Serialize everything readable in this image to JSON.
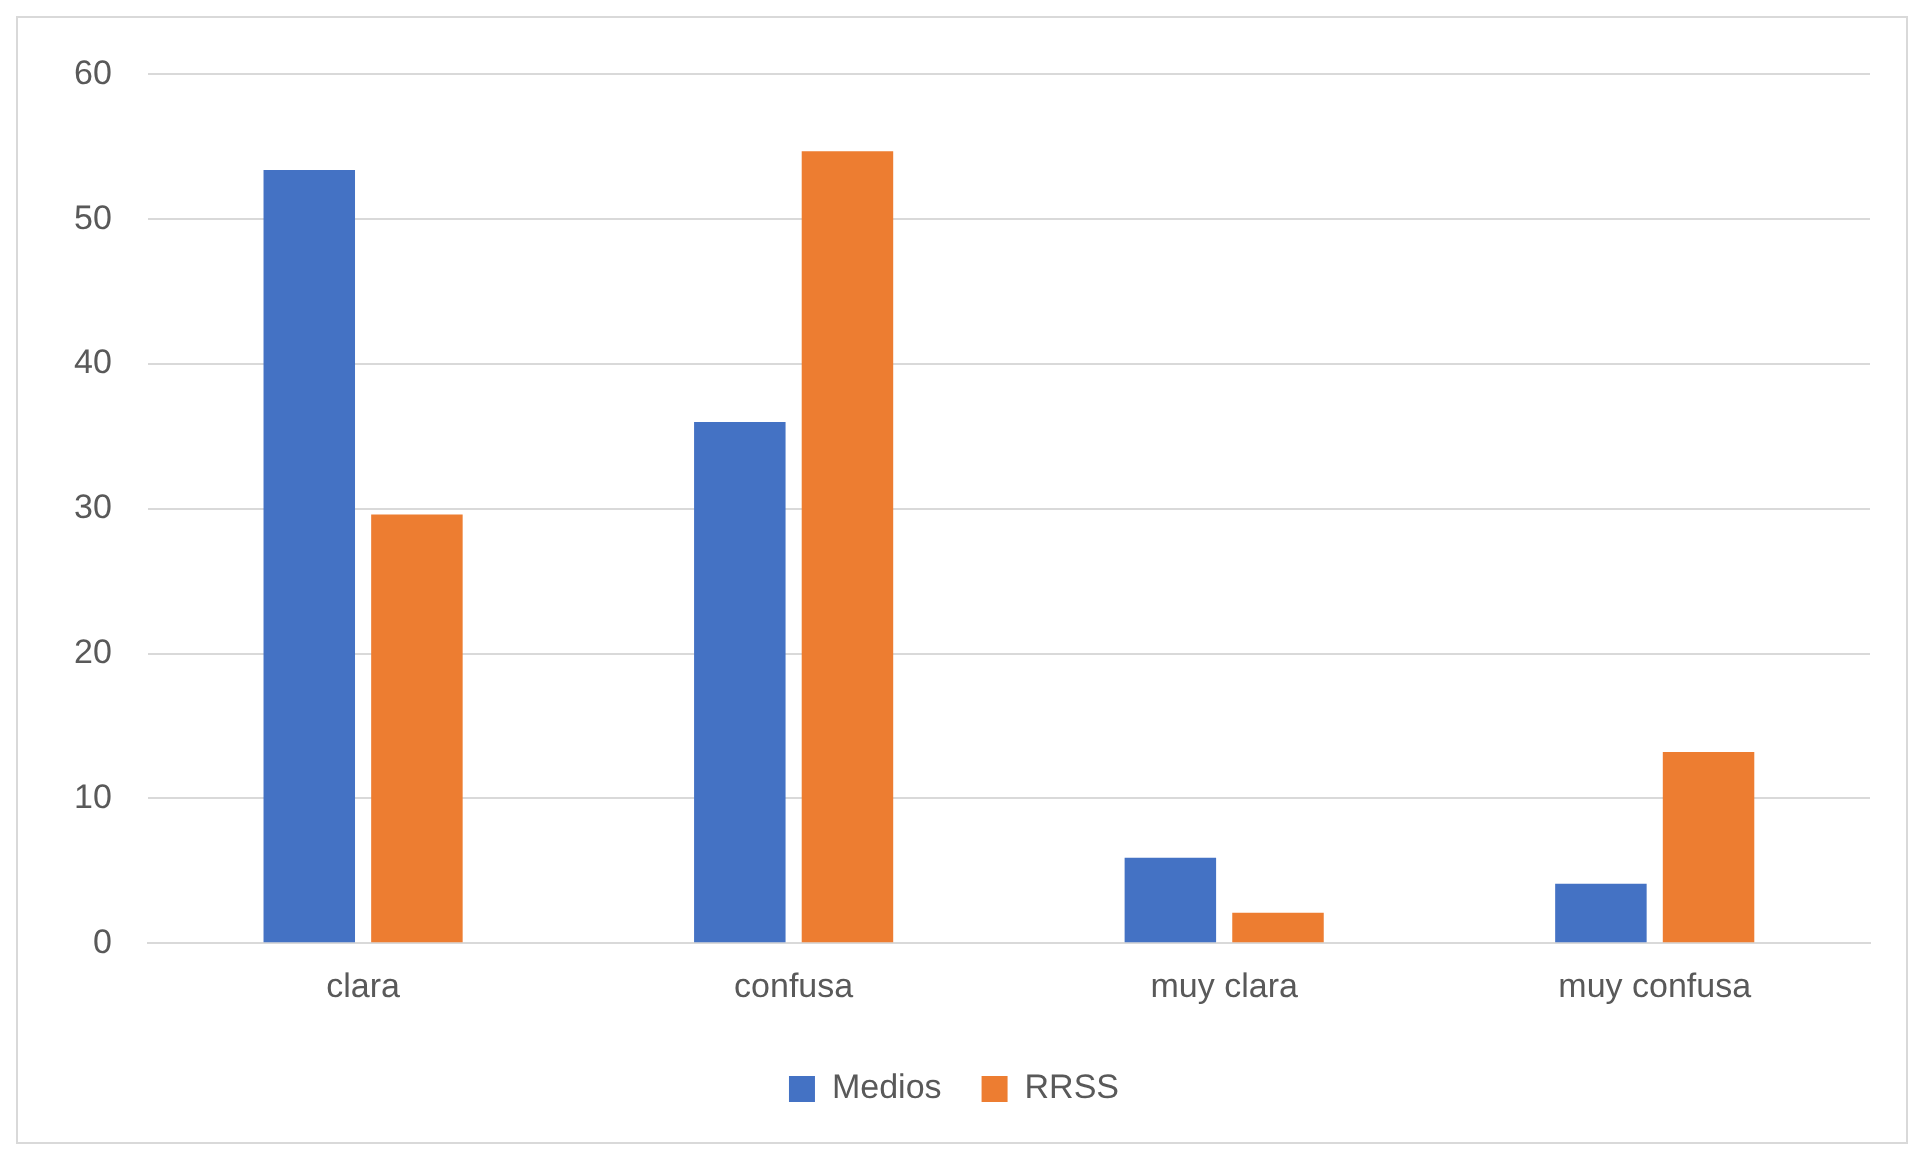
{
  "chart_data": {
    "type": "bar",
    "categories": [
      "clara",
      "confusa",
      "muy clara",
      "muy confusa"
    ],
    "series": [
      {
        "name": "Medios",
        "color": "#4472c4",
        "values": [
          53.4,
          36.0,
          5.9,
          4.1
        ]
      },
      {
        "name": "RRSS",
        "color": "#ed7d31",
        "values": [
          29.6,
          54.7,
          2.1,
          13.2
        ]
      }
    ],
    "ylim": [
      0,
      60
    ],
    "yticks": [
      0,
      10,
      20,
      30,
      40,
      50,
      60
    ],
    "grid": "y",
    "legend": "bottom"
  }
}
